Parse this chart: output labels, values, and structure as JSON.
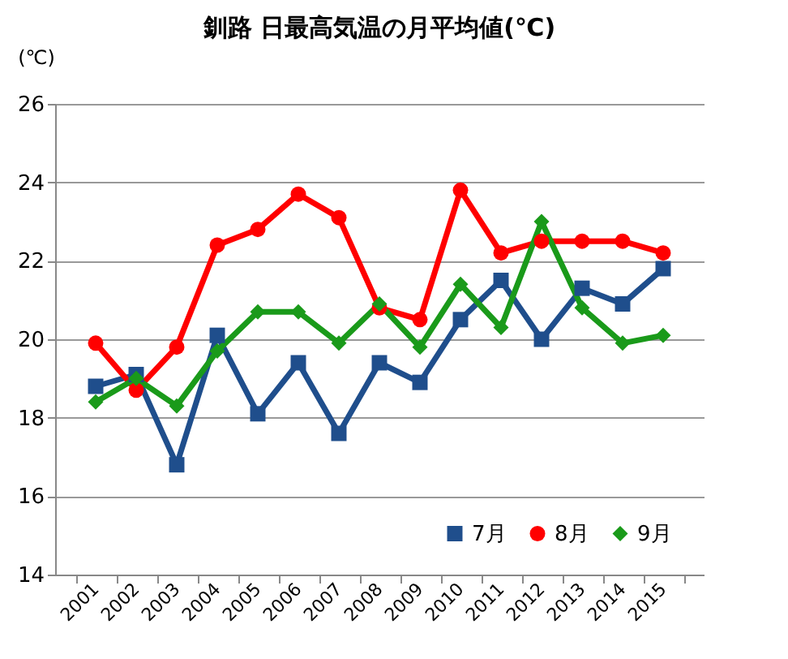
{
  "chart_data": {
    "type": "line",
    "title": "釧路 日最高気温の月平均値(℃)",
    "ylabel": "(℃)",
    "categories": [
      "2001",
      "2002",
      "2003",
      "2004",
      "2005",
      "2006",
      "2007",
      "2008",
      "2009",
      "2010",
      "2011",
      "2012",
      "2013",
      "2014",
      "2015"
    ],
    "series": [
      {
        "name": "7月",
        "color": "#1f4e8c",
        "marker": "square",
        "values": [
          18.8,
          19.1,
          16.8,
          20.1,
          18.1,
          19.4,
          17.6,
          19.4,
          18.9,
          20.5,
          21.5,
          20.0,
          21.3,
          20.9,
          21.8
        ]
      },
      {
        "name": "8月",
        "color": "#ff0000",
        "marker": "circle",
        "values": [
          19.9,
          18.7,
          19.8,
          22.4,
          22.8,
          23.7,
          23.1,
          20.8,
          20.5,
          23.8,
          22.2,
          22.5,
          22.5,
          22.5,
          22.2
        ]
      },
      {
        "name": "9月",
        "color": "#1a9a1a",
        "marker": "diamond",
        "values": [
          18.4,
          19.0,
          18.3,
          19.7,
          20.7,
          20.7,
          19.9,
          20.9,
          19.8,
          21.4,
          20.3,
          23.0,
          20.8,
          19.9,
          20.1
        ]
      }
    ],
    "ylim": [
      14,
      26
    ],
    "yticks": [
      14,
      16,
      18,
      20,
      22,
      24,
      26
    ],
    "grid": "y",
    "legend": "bottom right",
    "line_style": "solid"
  }
}
